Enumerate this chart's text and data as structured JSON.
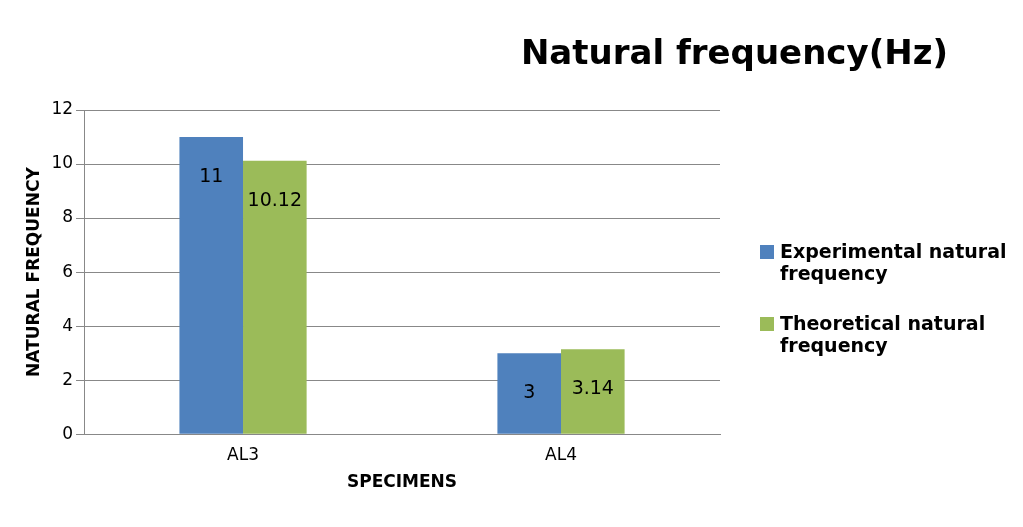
{
  "chart_data": {
    "type": "bar",
    "title": "Natural frequency(Hz)",
    "xlabel": "SPECIMENS",
    "ylabel": "NATURAL FREQUENCY",
    "categories": [
      "AL3",
      "AL4"
    ],
    "series": [
      {
        "name": "Experimental natural frequency",
        "color": "#4f81bd",
        "values": [
          11,
          3
        ]
      },
      {
        "name": "Theoretical natural frequency",
        "color": "#9bbb59",
        "values": [
          10.12,
          3.14
        ]
      }
    ],
    "ylim": [
      0,
      12
    ],
    "yticks": [
      0,
      2,
      4,
      6,
      8,
      10,
      12
    ],
    "grid": "y",
    "legend": "right",
    "data_labels": true
  }
}
